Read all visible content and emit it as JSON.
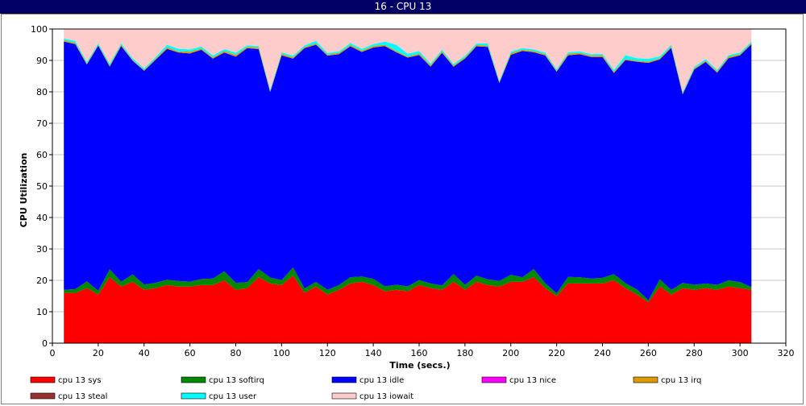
{
  "window": {
    "title": "16 - CPU 13"
  },
  "chart_data": {
    "type": "area",
    "stacked": true,
    "xlabel": "Time (secs.)",
    "ylabel": "CPU Utilization",
    "xlim": [
      0,
      320
    ],
    "ylim": [
      0,
      100
    ],
    "xticks": [
      0,
      20,
      40,
      60,
      80,
      100,
      120,
      140,
      160,
      180,
      200,
      220,
      240,
      260,
      280,
      300,
      320
    ],
    "yticks": [
      0,
      10,
      20,
      30,
      40,
      50,
      60,
      70,
      80,
      90,
      100
    ],
    "grid": true,
    "legend_position": "bottom",
    "x": [
      5,
      10,
      15,
      20,
      25,
      30,
      35,
      40,
      45,
      50,
      55,
      60,
      65,
      70,
      75,
      80,
      85,
      90,
      95,
      100,
      105,
      110,
      115,
      120,
      125,
      130,
      135,
      140,
      145,
      150,
      155,
      160,
      165,
      170,
      175,
      180,
      185,
      190,
      195,
      200,
      205,
      210,
      215,
      220,
      225,
      230,
      235,
      240,
      245,
      250,
      255,
      260,
      265,
      270,
      275,
      280,
      285,
      290,
      295,
      300,
      305
    ],
    "series": [
      {
        "name": "cpu 13 sys",
        "color": "#ff0000",
        "values": [
          16,
          16,
          17.5,
          15.5,
          21,
          18,
          19.5,
          17,
          17.5,
          18.5,
          18,
          18,
          18.5,
          18.5,
          20,
          17,
          17.5,
          21,
          19,
          18.5,
          21.5,
          16,
          18,
          15.5,
          17,
          19,
          19.5,
          18.5,
          16.5,
          17,
          16.5,
          18.5,
          17.5,
          17,
          19.5,
          17,
          19.5,
          18.5,
          18,
          19.5,
          19.5,
          21,
          17.5,
          15,
          19,
          19,
          19,
          19,
          20,
          17.5,
          15.5,
          13,
          18,
          15.5,
          17.5,
          17,
          17.5,
          17,
          18,
          17.5,
          17
        ]
      },
      {
        "name": "cpu 13 softirq",
        "color": "#008800",
        "values": [
          1,
          1.2,
          2.2,
          1.2,
          2.5,
          1.6,
          2.4,
          1.7,
          1.7,
          1.7,
          1.8,
          1.6,
          1.9,
          2.1,
          2.9,
          2.2,
          1.9,
          2.6,
          1.9,
          1.6,
          2.6,
          1.4,
          1.5,
          1.5,
          1.5,
          2,
          1.7,
          2,
          1.6,
          1.6,
          1.6,
          1.6,
          1.5,
          1.4,
          2.5,
          1.6,
          2,
          1.8,
          1.8,
          2.3,
          1.5,
          2.6,
          1.6,
          0.9,
          2.1,
          2,
          1.6,
          1.8,
          2,
          1.6,
          1.6,
          0.7,
          2.3,
          1.5,
          1.7,
          1.6,
          1.5,
          1.6,
          2,
          1.9,
          0.9
        ]
      },
      {
        "name": "cpu 13 idle",
        "color": "#0000ff",
        "values": [
          79,
          78,
          69,
          78,
          64.5,
          75,
          68,
          68,
          71,
          73.5,
          72.7,
          72.6,
          73,
          70,
          69.6,
          72,
          74.5,
          70,
          59,
          71.5,
          66.5,
          76.5,
          75.5,
          74.5,
          73.5,
          73.5,
          71.5,
          73.6,
          76.5,
          74,
          72.8,
          71.6,
          69,
          74,
          66,
          72,
          73,
          74,
          63,
          70,
          72,
          69,
          72.5,
          70.5,
          70.5,
          71,
          70.5,
          70.3,
          64,
          71,
          72.5,
          75.5,
          70,
          77,
          60,
          68.5,
          70.5,
          67.5,
          70.7,
          72.2,
          77.3
        ]
      },
      {
        "name": "cpu 13 nice",
        "color": "#ff00ff",
        "values": [
          0,
          0,
          0,
          0,
          0,
          0,
          0,
          0,
          0,
          0,
          0,
          0,
          0,
          0,
          0,
          0,
          0,
          0,
          0,
          0,
          0,
          0,
          0,
          0,
          0,
          0,
          0,
          0,
          0,
          0,
          0,
          0,
          0,
          0,
          0,
          0,
          0,
          0,
          0,
          0,
          0,
          0,
          0,
          0,
          0,
          0,
          0,
          0,
          0,
          0,
          0,
          0,
          0,
          0,
          0,
          0,
          0,
          0,
          0,
          0,
          0
        ]
      },
      {
        "name": "cpu 13 irq",
        "color": "#dd9900",
        "values": [
          0.5,
          0.4,
          0.3,
          0.3,
          0.4,
          0.4,
          0.3,
          0.3,
          0.4,
          0.5,
          0.4,
          0.6,
          0.4,
          0.4,
          0.5,
          0.6,
          0.4,
          0.5,
          0.3,
          0.5,
          0.4,
          0.4,
          0.4,
          0.4,
          0.4,
          0.4,
          0.4,
          0.5,
          0.4,
          0.4,
          0.3,
          0.5,
          0.5,
          0.5,
          0.4,
          0.4,
          0.4,
          0.4,
          0.3,
          0.5,
          0.4,
          0.4,
          0.4,
          0.3,
          0.5,
          0.4,
          0.4,
          0.5,
          0.4,
          0.4,
          0.3,
          0.4,
          0.4,
          0.4,
          0.3,
          0.4,
          0.4,
          0.4,
          0.5,
          0.4,
          0.4
        ]
      },
      {
        "name": "cpu 13 steal",
        "color": "#993333",
        "values": [
          0,
          0,
          0,
          0,
          0,
          0,
          0,
          0,
          0,
          0,
          0,
          0,
          0,
          0,
          0,
          0,
          0,
          0,
          0,
          0,
          0,
          0,
          0,
          0,
          0,
          0,
          0,
          0,
          0,
          0,
          0,
          0,
          0,
          0,
          0,
          0,
          0,
          0,
          0,
          0,
          0,
          0,
          0,
          0,
          0,
          0,
          0,
          0,
          0,
          0,
          0,
          0,
          0,
          0,
          0,
          0,
          0,
          0,
          0,
          0,
          0
        ]
      },
      {
        "name": "cpu 13 user",
        "color": "#00ffff",
        "values": [
          0.5,
          0.6,
          0.5,
          0.5,
          0.6,
          0.5,
          0.5,
          0.5,
          0.5,
          0.8,
          0.8,
          0.7,
          0.6,
          0.6,
          0.6,
          0.7,
          0.5,
          0.5,
          0.5,
          0.5,
          0.5,
          0.5,
          0.8,
          0.5,
          0.5,
          0.7,
          0.6,
          0.6,
          1,
          2,
          0.9,
          0.8,
          0.5,
          0.5,
          0.5,
          0.5,
          0.5,
          0.7,
          0.5,
          0.5,
          0.5,
          0.5,
          0.5,
          0.5,
          0.5,
          0.5,
          0.5,
          0.5,
          0.6,
          1.2,
          0.8,
          0.9,
          0.6,
          0.6,
          0.5,
          0.5,
          0.5,
          0.5,
          0.5,
          0.5,
          0.5
        ]
      },
      {
        "name": "cpu 13 iowait",
        "color": "#ffcccc",
        "values": [
          3,
          3.8,
          10.5,
          4.5,
          11,
          4.5,
          9.3,
          12.5,
          9.4,
          5,
          6.3,
          6.5,
          5.6,
          8.4,
          6.4,
          7.5,
          5.2,
          5.4,
          19.3,
          7.4,
          9,
          5.2,
          3.8,
          7.6,
          7.1,
          4.4,
          6.3,
          4.8,
          4,
          5,
          7.9,
          7,
          11,
          6.6,
          11.1,
          8.5,
          4.6,
          4.6,
          16.4,
          7.2,
          6.1,
          6.5,
          8,
          12.8,
          7.4,
          7.1,
          8,
          7.9,
          13,
          8.3,
          9.3,
          9.5,
          8.7,
          5,
          20,
          12,
          9.6,
          13,
          8.3,
          7.5,
          3.9
        ]
      }
    ]
  }
}
